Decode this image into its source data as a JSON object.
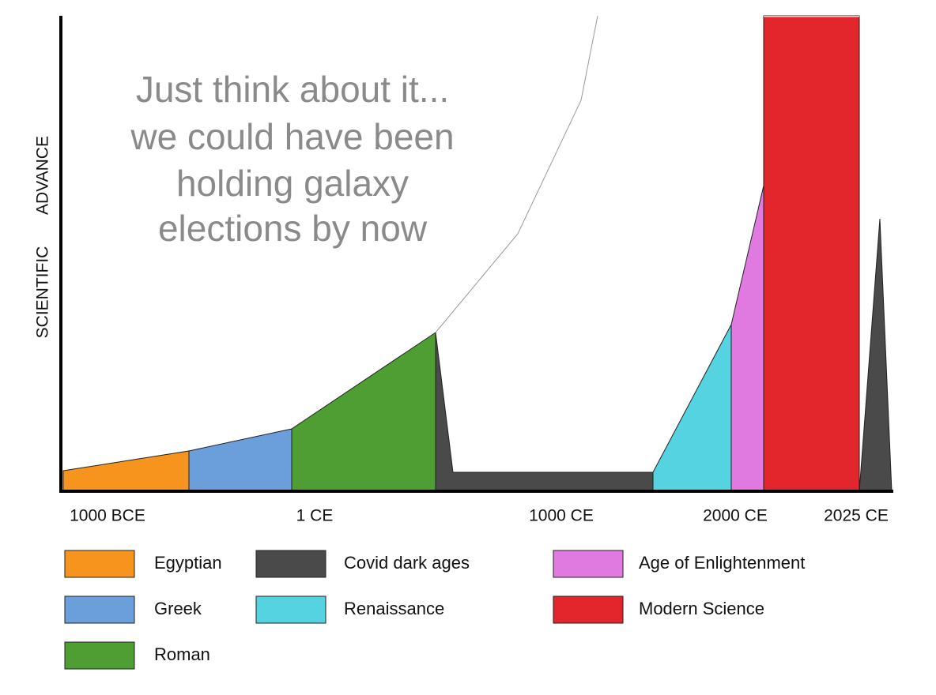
{
  "annotation": [
    "Just think about it...",
    "we could have been",
    "holding galaxy",
    "elections by now"
  ],
  "y_label": [
    "SCIENTIFIC",
    "ADVANCE"
  ],
  "x_labels": [
    "1000 BCE",
    "1 CE",
    "1000 CE",
    "2000 CE",
    "2025 CE"
  ],
  "legend": {
    "items": [
      {
        "label": "Egyptian",
        "color": "#f7941d"
      },
      {
        "label": "Greek",
        "color": "#6a9fdc"
      },
      {
        "label": "Roman",
        "color": "#4e9e34"
      },
      {
        "label": "Covid dark ages",
        "color": "#4a4a4a"
      },
      {
        "label": "Renaissance",
        "color": "#55d3e0"
      },
      {
        "label": "Age of Enlightenment",
        "color": "#e07ae0"
      },
      {
        "label": "Modern Science",
        "color": "#e3262b"
      }
    ]
  }
}
